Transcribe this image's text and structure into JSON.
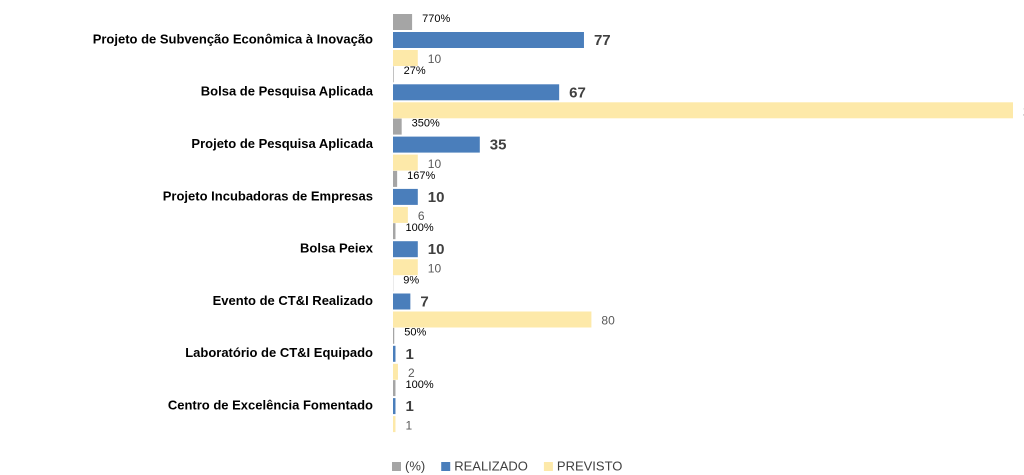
{
  "chart_data": {
    "type": "bar",
    "orientation": "horizontal",
    "categories": [
      "Projeto de Subvenção Econômica à Inovação",
      "Bolsa de Pesquisa Aplicada",
      "Projeto de Pesquisa Aplicada",
      "Projeto Incubadoras de Empresas",
      "Bolsa Peiex",
      "Evento de CT&I Realizado",
      "Laboratório de CT&I Equipado",
      "Centro de Excelência Fomentado"
    ],
    "series": [
      {
        "name": "(%)",
        "color": "#a5a5a5",
        "values": [
          7.7,
          0.27,
          3.5,
          1.67,
          1.0,
          0.09,
          0.5,
          1.0
        ],
        "value_labels": [
          "770%",
          "27%",
          "350%",
          "167%",
          "100%",
          "9%",
          "50%",
          "100%"
        ]
      },
      {
        "name": "REALIZADO",
        "color": "#4a7ebb",
        "values": [
          77,
          67,
          35,
          10,
          10,
          7,
          1,
          1
        ]
      },
      {
        "name": "PREVISTO",
        "color": "#fde9a9",
        "values": [
          10,
          250,
          10,
          6,
          10,
          80,
          2,
          1
        ]
      }
    ],
    "xlim": [
      0,
      250
    ]
  }
}
